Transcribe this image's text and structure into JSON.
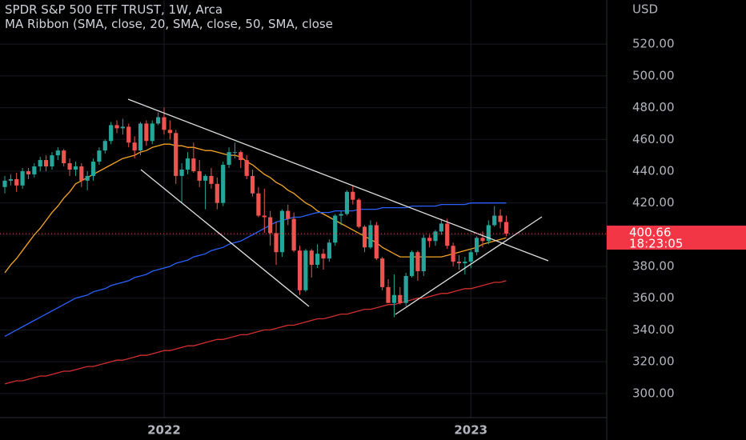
{
  "chart_data": {
    "type": "candlestick",
    "title": "SPDR S&P 500 ETF TRUST, 1W, Arca",
    "subtitle": "MA Ribbon (SMA, close, 20, SMA, close, 50, SMA, close",
    "currency": "USD",
    "countdown": "18:23:05",
    "last_price": 400.66,
    "up_color": "#26a69a",
    "down_color": "#ef5350",
    "grid": true,
    "ylim": [
      284.8,
      547.8
    ],
    "yticks": [
      {
        "value": 300,
        "label": "300.00"
      },
      {
        "value": 320,
        "label": "320.00"
      },
      {
        "value": 340,
        "label": "340.00"
      },
      {
        "value": 360,
        "label": "360.00"
      },
      {
        "value": 380,
        "label": "380.00"
      },
      {
        "value": 400,
        "label": "400.00"
      },
      {
        "value": 420,
        "label": "420.00"
      },
      {
        "value": 440,
        "label": "440.00"
      },
      {
        "value": 460,
        "label": "460.00"
      },
      {
        "value": 480,
        "label": "480.00"
      },
      {
        "value": 500,
        "label": "500.00"
      },
      {
        "value": 520,
        "label": "520.00"
      }
    ],
    "categories": [
      null,
      null,
      null,
      null,
      null,
      null,
      null,
      null,
      null,
      null,
      null,
      null,
      null,
      null,
      null,
      null,
      null,
      null,
      null,
      null,
      null,
      null,
      null,
      null,
      null,
      null,
      null,
      "2022",
      null,
      null,
      null,
      null,
      null,
      null,
      null,
      null,
      null,
      null,
      null,
      null,
      null,
      null,
      null,
      null,
      null,
      null,
      null,
      null,
      null,
      null,
      null,
      null,
      null,
      null,
      null,
      null,
      null,
      null,
      null,
      null,
      null,
      null,
      null,
      null,
      null,
      null,
      null,
      null,
      null,
      null,
      null,
      null,
      null,
      null,
      null,
      null,
      null,
      null,
      null,
      "2023",
      null,
      null,
      null,
      null,
      null,
      null
    ],
    "open": [
      430,
      434,
      435,
      431,
      440,
      438,
      443,
      447,
      443,
      450,
      453,
      445,
      441,
      443,
      434,
      437,
      446,
      453,
      459,
      469,
      467,
      468,
      458,
      453,
      470,
      459,
      470,
      474,
      466,
      464,
      437,
      441,
      448,
      440,
      434,
      437,
      432,
      420,
      444,
      452,
      452,
      447,
      437,
      426,
      412,
      411,
      401,
      389,
      415,
      410,
      390,
      365,
      390,
      381,
      388,
      385,
      395,
      412,
      413,
      427,
      422,
      405,
      392,
      406,
      385,
      367,
      357,
      362,
      357,
      374,
      389,
      377,
      398,
      396,
      402,
      407,
      393,
      383,
      382,
      383,
      389,
      398,
      396,
      406,
      412,
      408
    ],
    "high": [
      437,
      438,
      439,
      442,
      442,
      445,
      449,
      450,
      452,
      455,
      454,
      448,
      446,
      445,
      440,
      448,
      455,
      460,
      471,
      472,
      473,
      470,
      462,
      471,
      472,
      472,
      477,
      480,
      472,
      466,
      445,
      452,
      458,
      447,
      438,
      442,
      436,
      446,
      455,
      458,
      453,
      450,
      441,
      430,
      429,
      415,
      408,
      416,
      419,
      414,
      393,
      391,
      391,
      394,
      391,
      397,
      413,
      415,
      428,
      431,
      423,
      406,
      409,
      408,
      386,
      372,
      375,
      367,
      376,
      390,
      390,
      400,
      400,
      403,
      410,
      410,
      395,
      387,
      386,
      391,
      399,
      402,
      409,
      418,
      416,
      412
    ],
    "low": [
      426,
      431,
      427,
      429,
      435,
      436,
      440,
      440,
      441,
      447,
      443,
      437,
      437,
      430,
      428,
      434,
      444,
      451,
      457,
      464,
      463,
      455,
      448,
      450,
      456,
      457,
      469,
      463,
      460,
      432,
      420,
      438,
      439,
      430,
      416,
      429,
      416,
      418,
      442,
      448,
      442,
      435,
      424,
      411,
      401,
      393,
      381,
      386,
      406,
      389,
      362,
      364,
      373,
      379,
      378,
      383,
      393,
      406,
      412,
      419,
      404,
      389,
      391,
      384,
      365,
      357,
      348,
      356,
      355,
      373,
      371,
      374,
      392,
      393,
      400,
      391,
      380,
      378,
      375,
      379,
      387,
      392,
      394,
      405,
      404,
      399
    ],
    "close": [
      434,
      435,
      431,
      440,
      438,
      443,
      447,
      443,
      450,
      453,
      445,
      441,
      443,
      434,
      437,
      446,
      453,
      459,
      469,
      467,
      468,
      458,
      453,
      470,
      459,
      470,
      474,
      466,
      464,
      437,
      441,
      448,
      440,
      434,
      437,
      432,
      420,
      444,
      452,
      452,
      447,
      437,
      426,
      412,
      411,
      401,
      389,
      415,
      410,
      390,
      365,
      390,
      381,
      388,
      385,
      395,
      412,
      413,
      427,
      422,
      405,
      392,
      406,
      385,
      367,
      357,
      362,
      357,
      374,
      389,
      377,
      398,
      396,
      402,
      407,
      393,
      383,
      382,
      383,
      389,
      398,
      396,
      406,
      412,
      408,
      400.66
    ],
    "series": [
      {
        "color": "#f5a623",
        "values": [
          376,
          381,
          385,
          390,
          395,
          400,
          404,
          409,
          414,
          418,
          423,
          427,
          432,
          434,
          436,
          438,
          440,
          442,
          444,
          446,
          448,
          449,
          450,
          452,
          453,
          455,
          456,
          457,
          457,
          456,
          456,
          455,
          455,
          454,
          453,
          453,
          452,
          451,
          450,
          450,
          449,
          446,
          444,
          441,
          438,
          436,
          433,
          431,
          428,
          426,
          423,
          420,
          418,
          415,
          413,
          411,
          409,
          407,
          405,
          403,
          401,
          399,
          397,
          395,
          392,
          390,
          388,
          386,
          386,
          386,
          386,
          386,
          386,
          386,
          386,
          387,
          388,
          389,
          390,
          391,
          392,
          394,
          395,
          396,
          397,
          398
        ]
      },
      {
        "color": "#2962ff",
        "values": [
          336,
          338,
          340,
          342,
          344,
          346,
          348,
          350,
          352,
          354,
          356,
          358,
          360,
          361,
          362,
          364,
          365,
          366,
          368,
          369,
          370,
          371,
          373,
          374,
          375,
          377,
          378,
          379,
          380,
          382,
          383,
          384,
          386,
          387,
          388,
          390,
          391,
          392,
          394,
          395,
          396,
          398,
          400,
          402,
          404,
          406,
          408,
          409,
          410,
          411,
          411,
          412,
          413,
          414,
          414,
          414,
          415,
          415,
          415,
          415,
          416,
          416,
          416,
          416,
          417,
          417,
          417,
          417,
          417,
          418,
          418,
          418,
          418,
          418,
          419,
          419,
          419,
          419,
          419,
          420,
          420,
          420,
          420,
          420,
          420,
          420
        ]
      },
      {
        "color": "#d32f2f",
        "values": [
          306,
          307,
          308,
          308,
          309,
          310,
          311,
          311,
          312,
          313,
          314,
          314,
          315,
          316,
          317,
          317,
          318,
          319,
          320,
          321,
          321,
          322,
          323,
          324,
          324,
          325,
          326,
          327,
          327,
          328,
          329,
          330,
          330,
          331,
          332,
          333,
          334,
          334,
          335,
          336,
          337,
          337,
          338,
          339,
          340,
          340,
          341,
          342,
          343,
          343,
          344,
          345,
          346,
          347,
          347,
          348,
          349,
          350,
          350,
          351,
          352,
          353,
          353,
          354,
          355,
          356,
          356,
          357,
          358,
          359,
          360,
          360,
          361,
          362,
          363,
          363,
          364,
          365,
          366,
          366,
          367,
          368,
          369,
          370,
          370,
          371
        ]
      }
    ]
  }
}
